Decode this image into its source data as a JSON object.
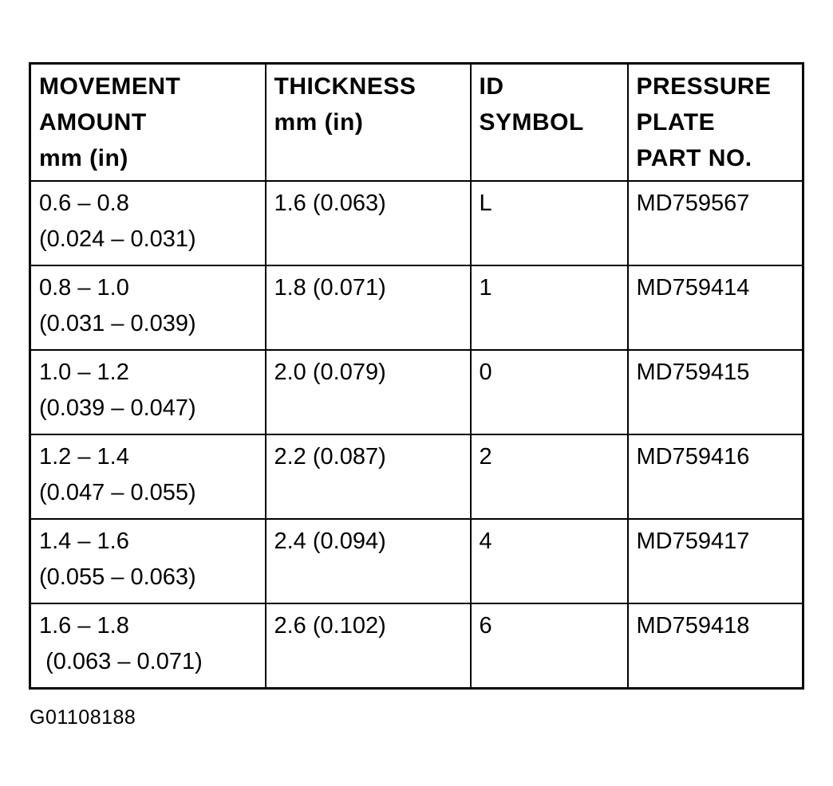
{
  "colors": {
    "ink": "#000000",
    "paper": "#ffffff"
  },
  "caption": "G01108188",
  "table": {
    "headers": [
      "MOVEMENT\nAMOUNT\nmm (in)",
      "THICKNESS\nmm (in)",
      "ID\nSYMBOL",
      "PRESSURE\nPLATE\nPART NO."
    ],
    "rows": [
      [
        "0.6 – 0.8\n(0.024 – 0.031)",
        "1.6 (0.063)",
        "L",
        "MD759567"
      ],
      [
        "0.8 – 1.0\n(0.031 – 0.039)",
        "1.8 (0.071)",
        "1",
        "MD759414"
      ],
      [
        "1.0 – 1.2\n(0.039 – 0.047)",
        "2.0 (0.079)",
        "0",
        "MD759415"
      ],
      [
        "1.2 – 1.4\n(0.047 – 0.055)",
        "2.2 (0.087)",
        "2",
        "MD759416"
      ],
      [
        "1.4 – 1.6\n(0.055 – 0.063)",
        "2.4 (0.094)",
        "4",
        "MD759417"
      ],
      [
        "1.6 – 1.8\n (0.063 – 0.071)",
        "2.6 (0.102)",
        "6",
        "MD759418"
      ]
    ]
  }
}
